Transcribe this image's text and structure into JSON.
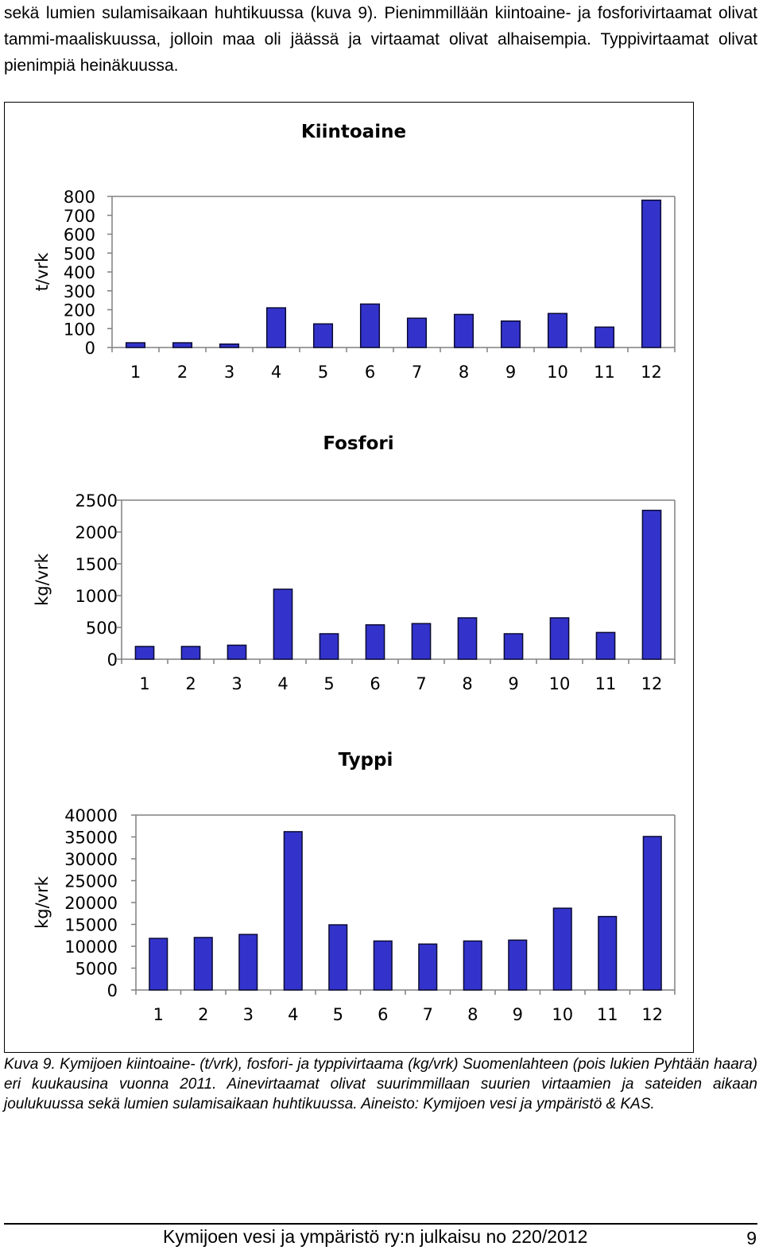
{
  "text": {
    "intro_paragraph": "sekä lumien sulamisaikaan huhtikuussa (kuva 9). Pienimmillään kiintoaine- ja fosforivirtaamat olivat tammi-maaliskuussa, jolloin maa oli jäässä ja virtaamat olivat alhaisempia. Typpivirtaamat olivat pienimpiä heinäkuussa.",
    "caption": "Kuva 9. Kymijoen kiintoaine- (t/vrk), fosfori- ja typpivirtaama (kg/vrk) Suomenlahteen (pois lukien Pyhtään haara) eri kuukausina vuonna 2011. Ainevirtaamat olivat suurimmillaan suurien virtaamien ja sateiden aikaan joulukuussa sekä lumien sulamisaikaan huhtikuussa. Aineisto: Kymijoen vesi ja ympäristö & KAS.",
    "footer": "Kymijoen vesi ja ympäristö ry:n julkaisu no 220/2012",
    "page_number": "9"
  },
  "colors": {
    "bar_fill": "#3333cc",
    "bar_edge": "#0a0a33",
    "axis": "#808080"
  },
  "chart_data": [
    {
      "type": "bar",
      "title": "Kiintoaine",
      "xlabel": "",
      "ylabel": "t/vrk",
      "categories": [
        "1",
        "2",
        "3",
        "4",
        "5",
        "6",
        "7",
        "8",
        "9",
        "10",
        "11",
        "12"
      ],
      "values": [
        25,
        25,
        18,
        210,
        125,
        230,
        155,
        175,
        140,
        180,
        108,
        780
      ],
      "ylim": [
        0,
        800
      ],
      "yticks": [
        0,
        100,
        200,
        300,
        400,
        500,
        600,
        700,
        800
      ],
      "grid": false,
      "legend": "none"
    },
    {
      "type": "bar",
      "title": "Fosfori",
      "xlabel": "",
      "ylabel": "kg/vrk",
      "categories": [
        "1",
        "2",
        "3",
        "4",
        "5",
        "6",
        "7",
        "8",
        "9",
        "10",
        "11",
        "12"
      ],
      "values": [
        200,
        200,
        220,
        1100,
        400,
        540,
        560,
        650,
        400,
        650,
        420,
        2340
      ],
      "ylim": [
        0,
        2500
      ],
      "yticks": [
        0,
        500,
        1000,
        1500,
        2000,
        2500
      ],
      "grid": false,
      "legend": "none"
    },
    {
      "type": "bar",
      "title": "Typpi",
      "xlabel": "",
      "ylabel": "kg/vrk",
      "categories": [
        "1",
        "2",
        "3",
        "4",
        "5",
        "6",
        "7",
        "8",
        "9",
        "10",
        "11",
        "12"
      ],
      "values": [
        11800,
        12000,
        12700,
        36200,
        14900,
        11200,
        10500,
        11200,
        11400,
        18700,
        16800,
        35100
      ],
      "ylim": [
        0,
        40000
      ],
      "yticks": [
        0,
        5000,
        10000,
        15000,
        20000,
        25000,
        30000,
        35000,
        40000
      ],
      "grid": false,
      "legend": "none"
    }
  ]
}
